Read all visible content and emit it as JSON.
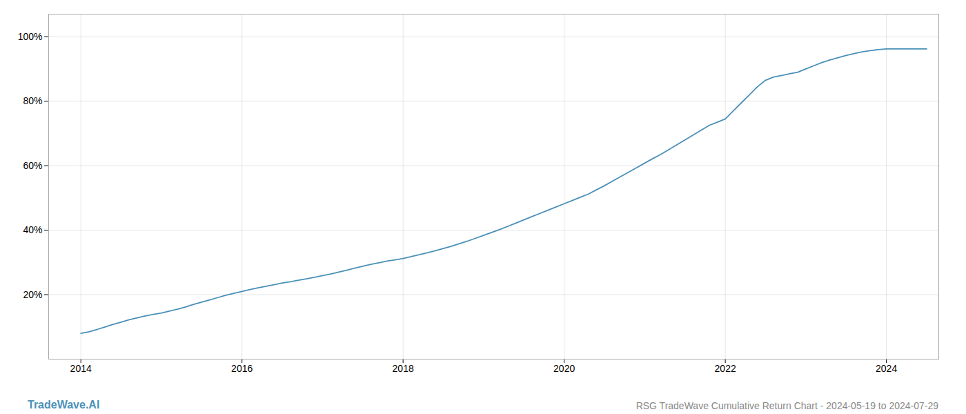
{
  "chart_data": {
    "type": "line",
    "title": "RSG TradeWave Cumulative Return Chart - 2024-05-19 to 2024-07-29",
    "annotations": [
      "TradeWave.AI"
    ],
    "color": "#4a90b8",
    "x": [
      2014.0,
      2014.1,
      2014.2,
      2014.3,
      2014.4,
      2014.5,
      2014.6,
      2014.7,
      2014.8,
      2014.9,
      2015.0,
      2015.1,
      2015.2,
      2015.3,
      2015.4,
      2015.5,
      2015.6,
      2015.7,
      2015.8,
      2015.9,
      2016.0,
      2016.1,
      2016.2,
      2016.3,
      2016.4,
      2016.5,
      2016.6,
      2016.7,
      2016.8,
      2016.9,
      2017.0,
      2017.1,
      2017.2,
      2017.3,
      2017.4,
      2017.5,
      2017.6,
      2017.7,
      2017.8,
      2017.9,
      2018.0,
      2018.1,
      2018.2,
      2018.3,
      2018.4,
      2018.5,
      2018.6,
      2018.7,
      2018.8,
      2018.9,
      2019.0,
      2019.1,
      2019.2,
      2019.3,
      2019.4,
      2019.5,
      2019.6,
      2019.7,
      2019.8,
      2019.9,
      2020.0,
      2020.1,
      2020.2,
      2020.3,
      2020.4,
      2020.5,
      2020.6,
      2020.7,
      2020.8,
      2020.9,
      2021.0,
      2021.1,
      2021.2,
      2021.3,
      2021.4,
      2021.5,
      2021.6,
      2021.7,
      2021.8,
      2021.9,
      2022.0,
      2022.1,
      2022.2,
      2022.3,
      2022.4,
      2022.5,
      2022.6,
      2022.7,
      2022.8,
      2022.9,
      2023.0,
      2023.1,
      2023.2,
      2023.3,
      2023.4,
      2023.5,
      2023.6,
      2023.7,
      2023.8,
      2023.9,
      2024.0,
      2024.1,
      2024.2,
      2024.3,
      2024.4,
      2024.5
    ],
    "values": [
      8.0,
      8.5,
      9.2,
      10.0,
      10.8,
      11.5,
      12.2,
      12.8,
      13.4,
      13.9,
      14.3,
      14.9,
      15.5,
      16.2,
      17.0,
      17.7,
      18.4,
      19.1,
      19.8,
      20.4,
      21.0,
      21.6,
      22.1,
      22.6,
      23.1,
      23.6,
      24.0,
      24.5,
      24.9,
      25.4,
      25.9,
      26.4,
      27.0,
      27.6,
      28.2,
      28.8,
      29.4,
      29.9,
      30.4,
      30.8,
      31.2,
      31.8,
      32.4,
      33.0,
      33.6,
      34.3,
      35.0,
      35.8,
      36.6,
      37.5,
      38.4,
      39.3,
      40.2,
      41.2,
      42.2,
      43.2,
      44.2,
      45.2,
      46.2,
      47.2,
      48.2,
      49.2,
      50.2,
      51.2,
      52.5,
      53.8,
      55.2,
      56.6,
      58.0,
      59.4,
      60.8,
      62.2,
      63.5,
      65.0,
      66.5,
      68.0,
      69.5,
      71.0,
      72.5,
      73.5,
      74.5,
      77.0,
      79.5,
      82.0,
      84.5,
      86.5,
      87.5,
      88.0,
      88.5,
      89.0,
      90.0,
      91.0,
      92.0,
      92.8,
      93.5,
      94.2,
      94.8,
      95.3,
      95.7,
      96.0,
      96.2,
      96.2,
      96.2,
      96.2,
      96.2,
      96.2
    ],
    "xlim": [
      2013.6,
      2024.65
    ],
    "ylim": [
      0,
      107
    ],
    "xticks": [
      2014,
      2016,
      2018,
      2020,
      2022,
      2024
    ],
    "yticks": [
      {
        "value": 20,
        "label": "20%"
      },
      {
        "value": 40,
        "label": "40%"
      },
      {
        "value": 60,
        "label": "60%"
      },
      {
        "value": 80,
        "label": "80%"
      },
      {
        "value": 100,
        "label": "100%"
      }
    ],
    "grid": true
  }
}
